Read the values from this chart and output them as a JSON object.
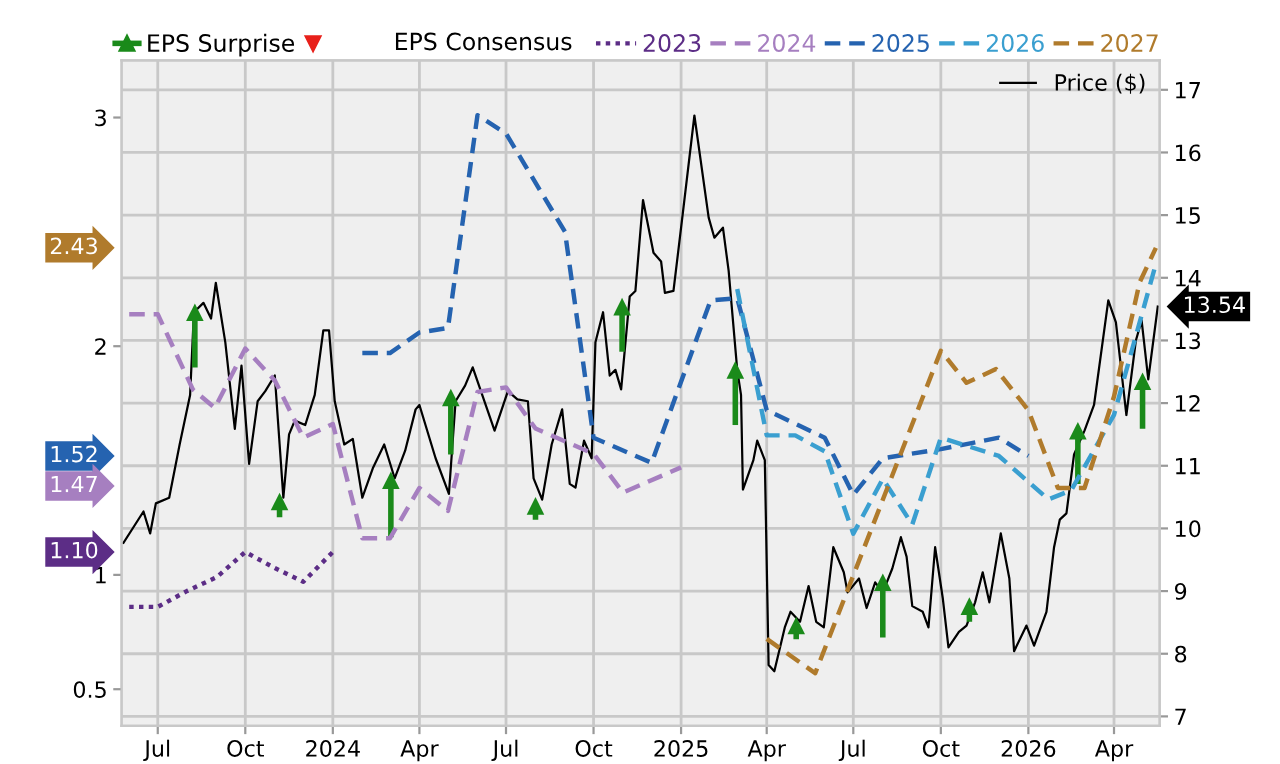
{
  "chart_data": {
    "type": "line",
    "legend_title": "EPS Consensus",
    "annotations": [
      "2.43",
      "1.52",
      "1.47",
      "1.10"
    ],
    "legend": "top",
    "grid": true,
    "xlim": [
      "2023-05-24",
      "2026-05-19"
    ],
    "xticks": [
      {
        "value": "2023-07-01",
        "label": "Jul"
      },
      {
        "value": "2023-10-01",
        "label": "Oct"
      },
      {
        "value": "2024-01-01",
        "label": "2024"
      },
      {
        "value": "2024-04-01",
        "label": "Apr"
      },
      {
        "value": "2024-07-01",
        "label": "Jul"
      },
      {
        "value": "2024-10-01",
        "label": "Oct"
      },
      {
        "value": "2025-01-01",
        "label": "2025"
      },
      {
        "value": "2025-04-01",
        "label": "Apr"
      },
      {
        "value": "2025-07-01",
        "label": "Jul"
      },
      {
        "value": "2025-10-01",
        "label": "Oct"
      },
      {
        "value": "2026-01-01",
        "label": "2026"
      },
      {
        "value": "2026-04-01",
        "label": "Apr"
      }
    ],
    "ylim": [
      0.34,
      3.25
    ],
    "yticks": [
      0.5,
      1,
      2,
      3
    ],
    "y2lim": [
      6.85,
      17.47
    ],
    "y2ticks": [
      7,
      8,
      9,
      10,
      11,
      12,
      13,
      14,
      15,
      16,
      17
    ],
    "series": [
      {
        "name": "2023",
        "type": "line",
        "axis": "y",
        "color": "#5c2d86",
        "line_style": "dotted",
        "x": [
          "2023-06-01",
          "2023-07-01",
          "2023-08-01",
          "2023-09-01",
          "2023-10-01",
          "2023-11-01",
          "2023-12-01",
          "2024-01-01"
        ],
        "values": [
          0.86,
          0.86,
          0.93,
          0.99,
          1.1,
          1.03,
          0.97,
          1.1
        ]
      },
      {
        "name": "2024",
        "type": "line",
        "axis": "y",
        "color": "#a67fc0",
        "line_style": "dashed",
        "x": [
          "2023-06-01",
          "2023-07-01",
          "2023-08-07",
          "2023-08-30",
          "2023-10-01",
          "2023-11-01",
          "2023-12-01",
          "2024-01-01",
          "2024-02-01",
          "2024-03-01",
          "2024-04-01",
          "2024-05-01",
          "2024-06-01",
          "2024-07-01",
          "2024-08-01",
          "2024-10-01",
          "2024-11-01",
          "2025-01-01"
        ],
        "values": [
          2.14,
          2.14,
          1.81,
          1.73,
          1.99,
          1.85,
          1.6,
          1.66,
          1.16,
          1.16,
          1.38,
          1.28,
          1.8,
          1.82,
          1.64,
          1.53,
          1.36,
          1.47
        ]
      },
      {
        "name": "2025",
        "type": "line",
        "axis": "y",
        "color": "#2563b0",
        "line_style": "dashed",
        "x": [
          "2024-02-01",
          "2024-03-01",
          "2024-04-01",
          "2024-05-01",
          "2024-06-01",
          "2024-07-01",
          "2024-09-01",
          "2024-10-01",
          "2024-12-01",
          "2025-02-01",
          "2025-03-01",
          "2025-04-01",
          "2025-06-01",
          "2025-07-01",
          "2025-08-01",
          "2025-10-01",
          "2025-12-01",
          "2026-01-01"
        ],
        "values": [
          1.97,
          1.97,
          2.06,
          2.08,
          3.01,
          2.93,
          2.5,
          1.6,
          1.49,
          2.2,
          2.21,
          1.72,
          1.6,
          1.35,
          1.51,
          1.55,
          1.6,
          1.52
        ]
      },
      {
        "name": "2026",
        "type": "line",
        "axis": "y",
        "color": "#3a9fd0",
        "line_style": "dashed",
        "x": [
          "2025-03-01",
          "2025-04-01",
          "2025-05-01",
          "2025-06-01",
          "2025-07-01",
          "2025-08-01",
          "2025-09-01",
          "2025-10-01",
          "2025-12-01",
          "2026-01-22",
          "2026-02-15",
          "2026-04-01",
          "2026-05-15"
        ],
        "values": [
          2.25,
          1.61,
          1.61,
          1.54,
          1.18,
          1.42,
          1.22,
          1.6,
          1.52,
          1.33,
          1.37,
          1.7,
          2.36
        ]
      },
      {
        "name": "2027",
        "type": "line",
        "axis": "y",
        "color": "#b07b2c",
        "line_style": "dashed",
        "x": [
          "2025-04-01",
          "2025-05-22",
          "2025-10-01",
          "2025-10-28",
          "2025-11-28",
          "2026-01-01",
          "2026-02-01",
          "2026-03-01",
          "2026-04-01",
          "2026-04-28",
          "2026-05-15"
        ],
        "values": [
          0.72,
          0.57,
          1.98,
          1.84,
          1.9,
          1.72,
          1.38,
          1.38,
          1.78,
          2.28,
          2.43
        ]
      },
      {
        "name": "Price ($)",
        "type": "line",
        "axis": "y2",
        "color": "#000000",
        "line_style": "solid",
        "x": [
          "2023-05-26",
          "2023-06-16",
          "2023-06-23",
          "2023-06-29",
          "2023-07-13",
          "2023-07-24",
          "2023-08-04",
          "2023-08-08",
          "2023-08-18",
          "2023-08-26",
          "2023-08-31",
          "2023-09-10",
          "2023-09-20",
          "2023-09-27",
          "2023-10-05",
          "2023-10-14",
          "2023-10-22",
          "2023-11-01",
          "2023-11-10",
          "2023-11-16",
          "2023-11-22",
          "2023-12-03",
          "2023-12-13",
          "2023-12-22",
          "2023-12-28",
          "2024-01-03",
          "2024-01-13",
          "2024-01-22",
          "2024-02-01",
          "2024-02-12",
          "2024-02-24",
          "2024-03-06",
          "2024-03-17",
          "2024-03-28",
          "2024-04-01",
          "2024-04-18",
          "2024-05-02",
          "2024-05-09",
          "2024-05-19",
          "2024-05-27",
          "2024-06-19",
          "2024-07-03",
          "2024-07-13",
          "2024-07-24",
          "2024-07-30",
          "2024-08-08",
          "2024-08-18",
          "2024-08-29",
          "2024-09-06",
          "2024-09-12",
          "2024-09-21",
          "2024-09-29",
          "2024-10-03",
          "2024-10-11",
          "2024-10-18",
          "2024-10-24",
          "2024-10-30",
          "2024-11-08",
          "2024-11-14",
          "2024-11-22",
          "2024-12-03",
          "2024-12-11",
          "2024-12-15",
          "2024-12-24",
          "2025-01-03",
          "2025-01-15",
          "2025-01-30",
          "2025-02-05",
          "2025-02-14",
          "2025-02-20",
          "2025-03-01",
          "2025-03-05",
          "2025-03-07",
          "2025-03-18",
          "2025-03-22",
          "2025-03-30",
          "2025-04-03",
          "2025-04-09",
          "2025-04-20",
          "2025-04-26",
          "2025-05-06",
          "2025-05-15",
          "2025-05-23",
          "2025-05-31",
          "2025-06-10",
          "2025-06-21",
          "2025-06-25",
          "2025-07-07",
          "2025-07-15",
          "2025-07-24",
          "2025-08-01",
          "2025-08-11",
          "2025-08-20",
          "2025-08-26",
          "2025-09-01",
          "2025-09-12",
          "2025-09-18",
          "2025-09-25",
          "2025-10-03",
          "2025-10-09",
          "2025-10-20",
          "2025-10-28",
          "2025-11-06",
          "2025-11-14",
          "2025-11-21",
          "2025-12-03",
          "2025-12-12",
          "2025-12-17",
          "2025-12-30",
          "2026-01-07",
          "2026-01-20",
          "2026-01-28",
          "2026-02-03",
          "2026-02-10",
          "2026-02-18",
          "2026-03-01",
          "2026-03-11",
          "2026-03-26",
          "2026-04-03",
          "2026-04-14",
          "2026-04-24",
          "2026-04-30",
          "2026-05-07",
          "2026-05-17"
        ],
        "values": [
          9.77,
          10.27,
          9.92,
          10.4,
          10.49,
          11.34,
          12.13,
          13.45,
          13.6,
          13.35,
          13.92,
          12.97,
          11.59,
          12.6,
          11.03,
          12.03,
          12.19,
          12.44,
          10.49,
          11.5,
          11.72,
          11.65,
          12.13,
          13.16,
          13.16,
          12.03,
          11.34,
          11.43,
          10.49,
          10.96,
          11.34,
          10.8,
          11.24,
          11.9,
          11.97,
          11.12,
          10.55,
          12.03,
          12.28,
          12.57,
          11.56,
          12.19,
          12.06,
          12.03,
          10.8,
          10.46,
          11.34,
          11.9,
          10.71,
          10.65,
          11.4,
          11.12,
          12.97,
          13.45,
          12.44,
          12.53,
          12.22,
          13.7,
          13.79,
          15.24,
          14.4,
          14.26,
          13.76,
          13.79,
          15.05,
          16.59,
          14.96,
          14.64,
          14.8,
          14.11,
          12.53,
          12.13,
          10.62,
          11.09,
          11.4,
          11.09,
          7.82,
          7.72,
          8.42,
          8.67,
          8.51,
          9.08,
          8.51,
          8.42,
          9.7,
          9.3,
          8.98,
          9.2,
          8.73,
          9.14,
          8.98,
          9.36,
          9.86,
          9.55,
          8.76,
          8.67,
          8.42,
          9.7,
          8.89,
          8.1,
          8.35,
          8.45,
          8.82,
          9.3,
          8.82,
          9.92,
          9.2,
          8.04,
          8.45,
          8.13,
          8.67,
          9.7,
          10.14,
          10.24,
          11.18,
          11.56,
          11.97,
          13.64,
          13.29,
          11.81,
          13.0,
          13.32,
          12.38,
          13.54
        ],
        "value_labels": [
          null,
          null,
          null,
          null,
          null,
          null,
          null,
          null,
          null,
          null,
          null,
          null,
          null,
          null,
          null,
          null,
          null,
          null,
          null,
          null,
          null,
          null,
          null,
          null,
          null,
          null,
          null,
          null,
          null,
          null,
          null,
          null,
          null,
          null,
          null,
          null,
          null,
          null,
          null,
          null,
          null,
          null,
          null,
          null,
          null,
          null,
          null,
          null,
          null,
          null,
          null,
          null,
          null,
          null,
          null,
          null,
          null,
          null,
          null,
          null,
          null,
          null,
          null,
          null,
          null,
          null,
          null,
          null,
          null,
          null,
          null,
          null,
          null,
          null,
          null,
          null,
          null,
          null,
          null,
          null,
          null,
          null,
          null,
          null,
          null,
          null,
          null,
          null,
          null,
          null,
          null,
          null,
          null,
          null,
          null,
          null,
          null,
          null,
          null,
          null,
          null,
          null,
          null,
          null,
          null,
          null,
          null,
          null,
          null,
          null,
          null,
          null,
          null,
          null,
          null,
          null,
          null,
          null,
          null,
          null,
          null,
          null,
          null,
          "13.54"
        ]
      },
      {
        "name": "EPS Surprise",
        "type": "scatter",
        "axis": "y2",
        "color": "#1a8a1a",
        "marker": "triangle",
        "x": [
          "2023-08-09",
          "2023-11-06",
          "2024-03-02",
          "2024-05-04",
          "2024-08-01",
          "2024-10-31",
          "2025-02-27",
          "2025-05-02",
          "2025-08-01",
          "2025-10-31",
          "2026-02-22",
          "2026-05-01"
        ],
        "values": [
          13.45,
          10.43,
          10.77,
          12.09,
          10.36,
          13.54,
          12.53,
          8.45,
          9.14,
          8.76,
          11.56,
          12.35
        ],
        "errors": [
          [
            12.57,
            13.45
          ],
          [
            10.18,
            10.43
          ],
          [
            9.86,
            10.77
          ],
          [
            11.18,
            12.09
          ],
          [
            10.14,
            10.36
          ],
          [
            12.82,
            13.54
          ],
          [
            11.65,
            12.53
          ],
          [
            8.23,
            8.45
          ],
          [
            8.26,
            9.14
          ],
          [
            8.51,
            8.76
          ],
          [
            10.71,
            11.56
          ],
          [
            11.59,
            12.35
          ]
        ]
      }
    ]
  }
}
